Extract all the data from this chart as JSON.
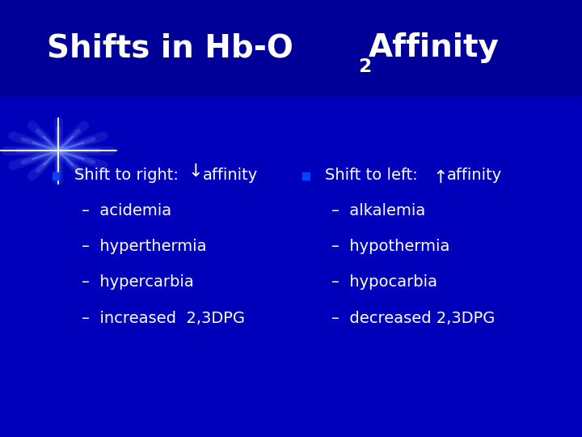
{
  "title_part1": "Shifts in Hb-O",
  "title_subscript": "2",
  "title_part2": "Affinity",
  "bg_color": "#0000AA",
  "bg_top_color": "#000088",
  "text_color": "#FFFFFF",
  "title_fontsize": 28,
  "body_fontsize": 14,
  "left_bullet": "Shift to right:",
  "left_arrow": "↓",
  "left_affinity": "affinity",
  "left_items": [
    "–  acidemia",
    "–  hyperthermia",
    "–  hypercarbia",
    "–  increased  2,3DPG"
  ],
  "right_bullet": "Shift to left:",
  "right_arrow": "↑",
  "right_affinity": "affinity",
  "right_items": [
    "–  alkalemia",
    "–  hypothermia",
    "–  hypocarbia",
    "–  decreased 2,3DPG"
  ],
  "figsize": [
    7.2,
    5.4
  ],
  "dpi": 100
}
